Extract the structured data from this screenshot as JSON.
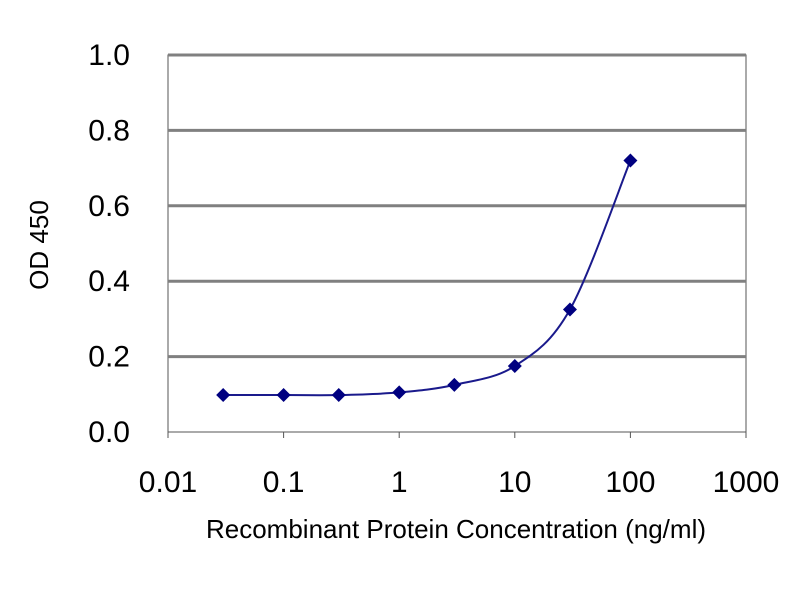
{
  "chart_data": {
    "type": "line",
    "xscale": "log",
    "xlim": [
      0.01,
      1000
    ],
    "ylim": [
      0.0,
      1.0
    ],
    "xticks": [
      "0.01",
      "0.1",
      "1",
      "10",
      "100",
      "1000"
    ],
    "yticks": [
      "0.0",
      "0.2",
      "0.4",
      "0.6",
      "0.8",
      "1.0"
    ],
    "xlabel": "Recombinant Protein Concentration (ng/ml)",
    "ylabel": "OD 450",
    "grid": "horizontal",
    "series": [
      {
        "x": [
          0.03,
          0.1,
          0.3,
          1,
          3,
          10,
          30,
          100
        ],
        "y": [
          0.098,
          0.098,
          0.098,
          0.105,
          0.125,
          0.175,
          0.325,
          0.72
        ]
      }
    ],
    "colors": {
      "plot_background": "#ffffff",
      "grid": "#808080",
      "line": "#1a1a8c",
      "marker": "#000080"
    }
  }
}
